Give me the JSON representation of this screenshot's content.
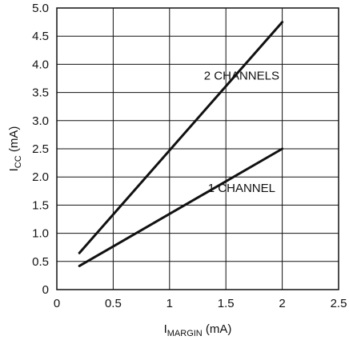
{
  "chart_data": {
    "type": "line",
    "title": "",
    "xlabel": {
      "main": "I",
      "sub": "MARGIN",
      "unit": " (mA)"
    },
    "ylabel": {
      "main": "I",
      "sub": "CC",
      "unit": " (mA)"
    },
    "xlim": [
      0,
      2.5
    ],
    "ylim": [
      0,
      5.0
    ],
    "x_ticks": [
      "0",
      "0.5",
      "1",
      "1.5",
      "2",
      "2.5"
    ],
    "y_ticks": [
      "0",
      "0.5",
      "1.0",
      "1.5",
      "2.0",
      "2.5",
      "3.0",
      "3.5",
      "4.0",
      "4.5",
      "5.0"
    ],
    "grid": true,
    "legend": "none",
    "series": [
      {
        "name": "2 CHANNELS",
        "x": [
          0.2,
          2.0
        ],
        "y": [
          0.65,
          4.75
        ]
      },
      {
        "name": "1 CHANNEL",
        "x": [
          0.2,
          2.0
        ],
        "y": [
          0.42,
          2.5
        ]
      }
    ],
    "annotations": [
      {
        "text": "2 CHANNELS",
        "x": 1.64,
        "y": 3.73
      },
      {
        "text": "1 CHANNEL",
        "x": 1.64,
        "y": 1.73
      }
    ]
  }
}
